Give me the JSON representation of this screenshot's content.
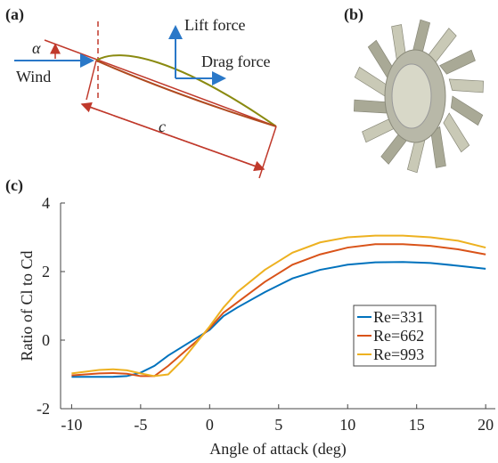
{
  "diagram": {
    "panel_a": "(a)",
    "panel_b": "(b)",
    "panel_c": "(c)",
    "alpha": "α",
    "wind": "Wind",
    "lift": "Lift force",
    "drag": "Drag force",
    "chord": "c"
  },
  "chart_data": {
    "type": "line",
    "xlabel": "Angle of attack (deg)",
    "ylabel": "Ratio of Cl to Cd",
    "x": [
      -10,
      -8,
      -7,
      -6,
      -5,
      -4,
      -3,
      -2,
      -1,
      0,
      1,
      2,
      4,
      5,
      6,
      8,
      10,
      12,
      14,
      16,
      18,
      20
    ],
    "series": [
      {
        "name": "Re=331",
        "color": "#0072BD",
        "values": [
          -1.07,
          -1.07,
          -1.07,
          -1.05,
          -0.95,
          -0.75,
          -0.45,
          -0.2,
          0.05,
          0.3,
          0.7,
          0.95,
          1.4,
          1.6,
          1.8,
          2.05,
          2.2,
          2.27,
          2.28,
          2.25,
          2.17,
          2.08
        ]
      },
      {
        "name": "Re=662",
        "color": "#D95319",
        "values": [
          -1.03,
          -0.97,
          -0.96,
          -0.98,
          -1.05,
          -1.05,
          -0.75,
          -0.4,
          -0.05,
          0.35,
          0.8,
          1.1,
          1.7,
          1.95,
          2.2,
          2.5,
          2.7,
          2.8,
          2.8,
          2.75,
          2.65,
          2.5
        ]
      },
      {
        "name": "Re=993",
        "color": "#EDB120",
        "values": [
          -0.97,
          -0.87,
          -0.85,
          -0.88,
          -0.97,
          -1.05,
          -1.0,
          -0.6,
          -0.1,
          0.4,
          0.95,
          1.4,
          2.05,
          2.3,
          2.55,
          2.85,
          3.0,
          3.05,
          3.05,
          3.0,
          2.9,
          2.7
        ]
      }
    ],
    "xlim": [
      -10.8,
      20.7
    ],
    "xticks": [
      -10,
      -5,
      0,
      5,
      10,
      15,
      20
    ],
    "ylim": [
      -2,
      4
    ],
    "yticks": [
      -2,
      0,
      2,
      4
    ],
    "legend": "right"
  }
}
